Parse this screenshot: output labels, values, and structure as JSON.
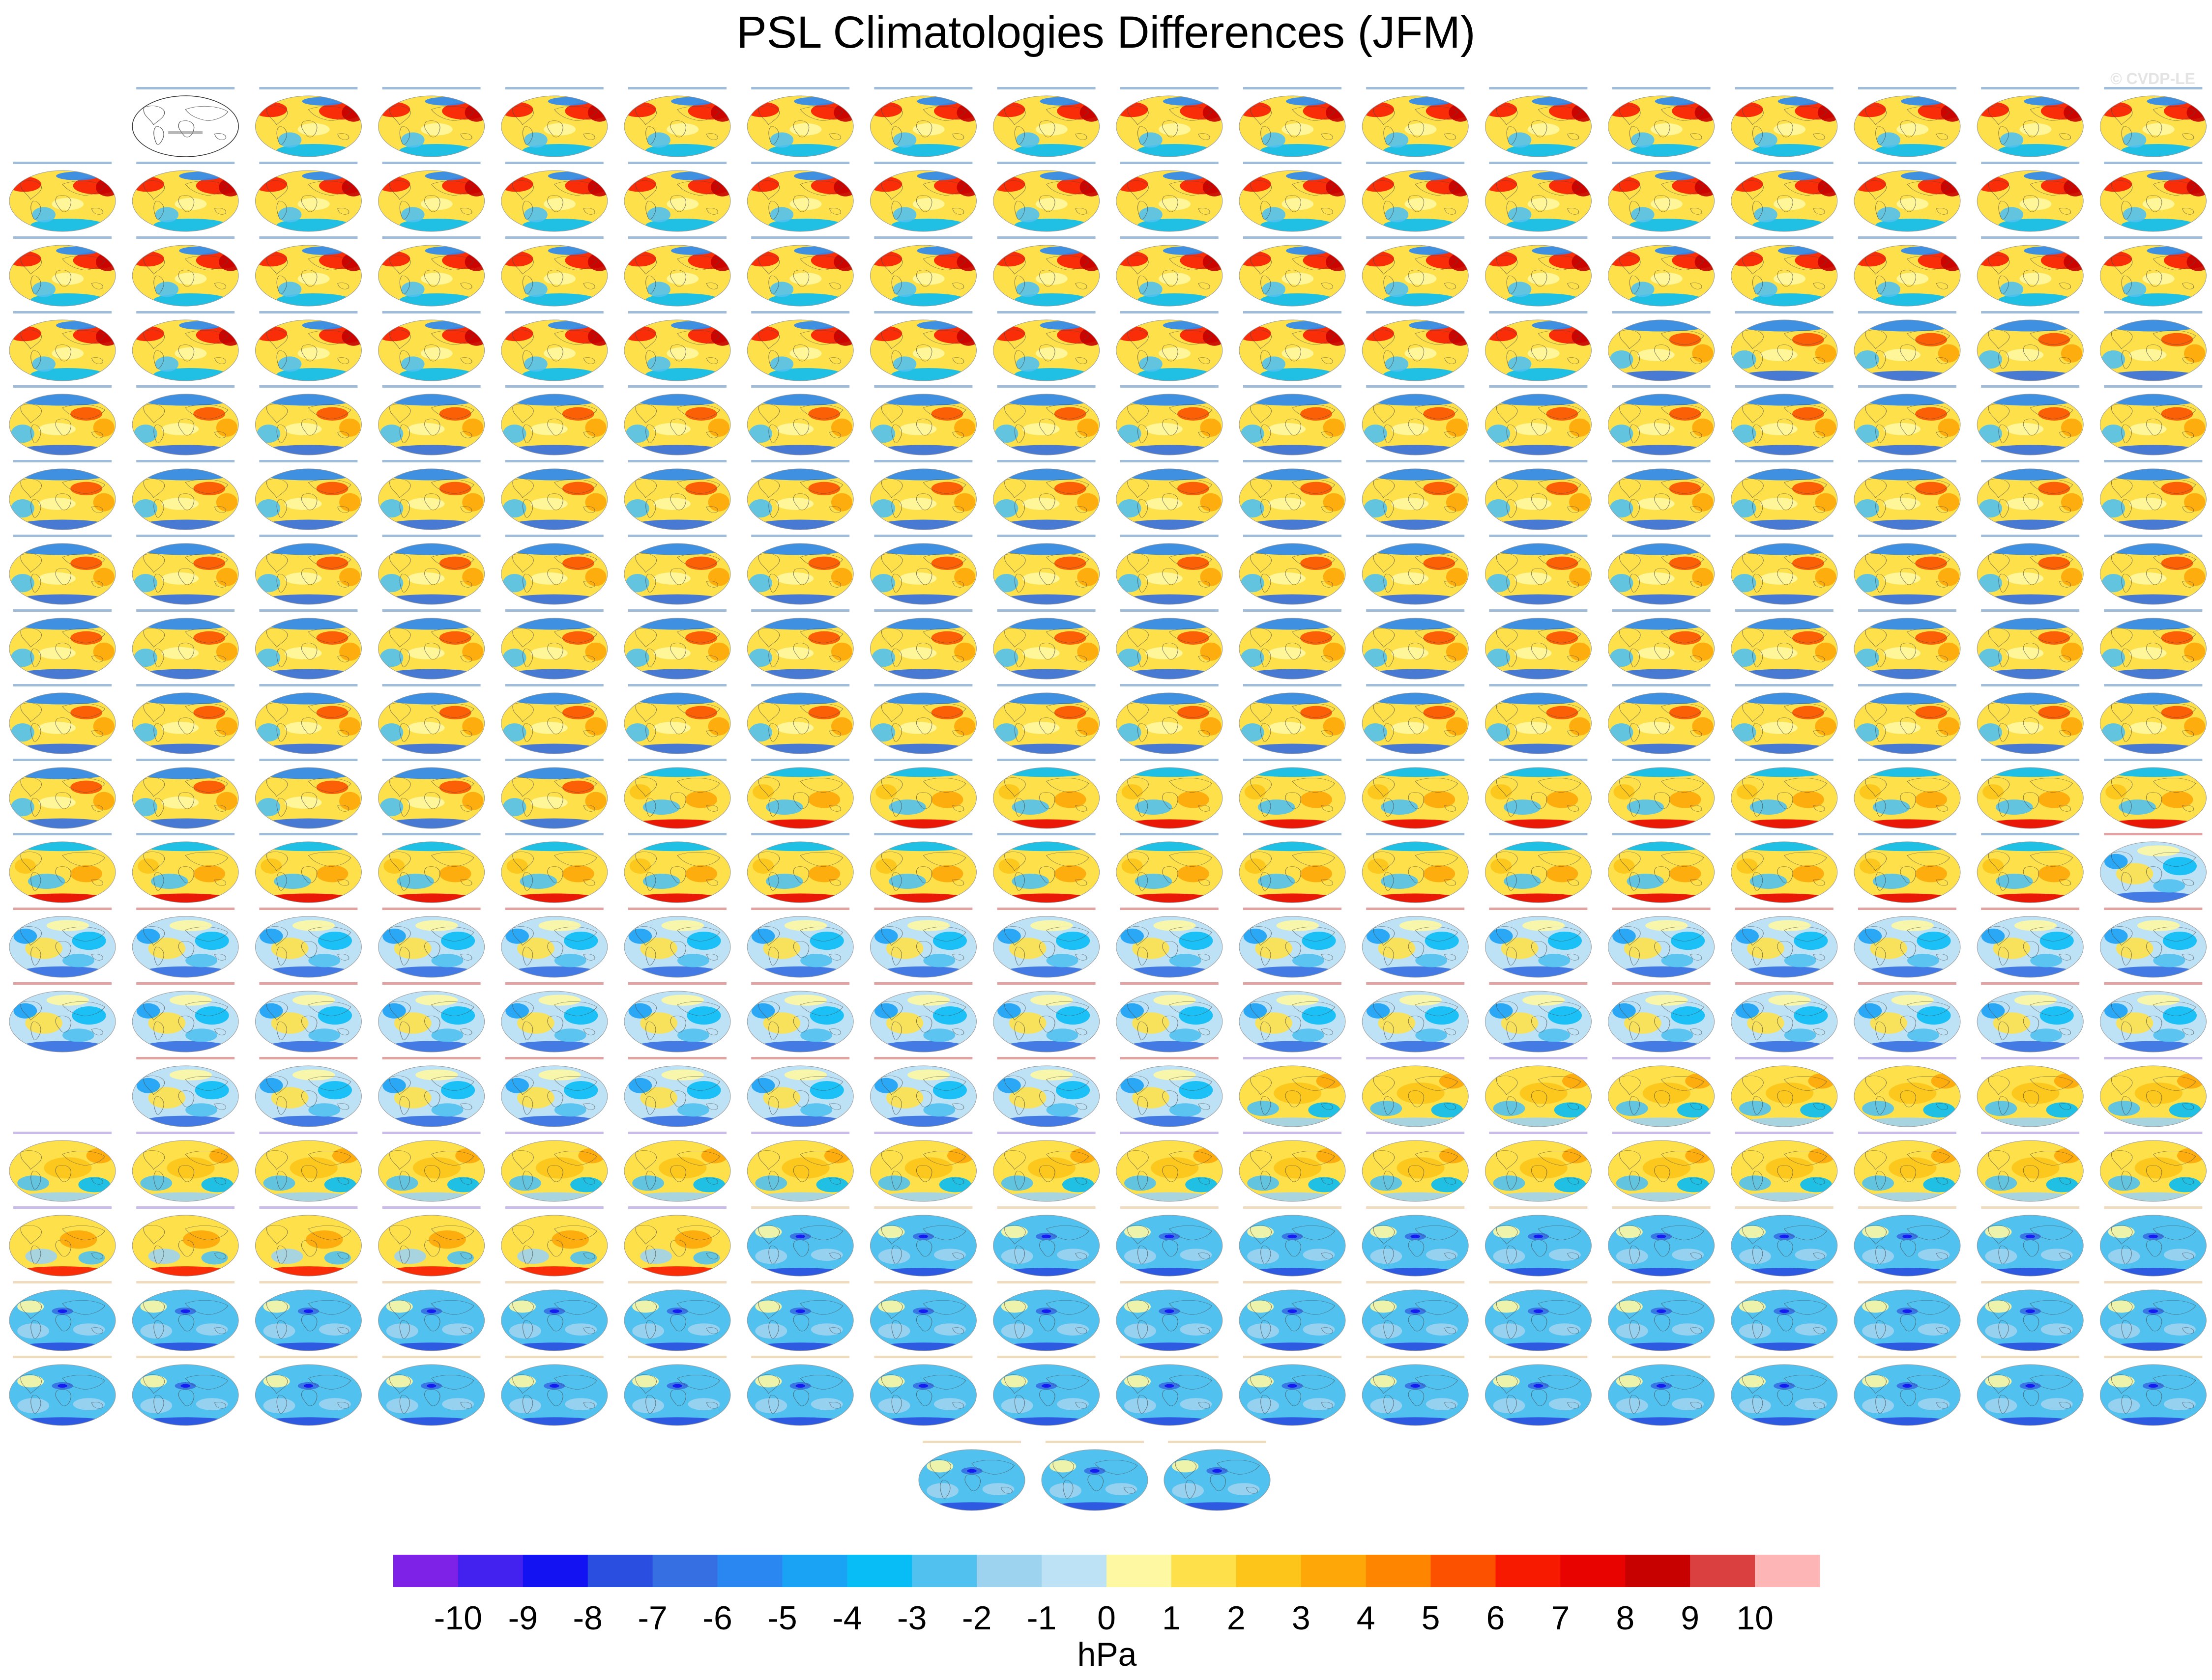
{
  "title": "PSL Climatologies Differences (JFM)",
  "watermark": "© CVDP-LE",
  "chart_data": {
    "type": "heatmap",
    "title": "PSL Climatologies Differences (JFM)",
    "panel_projection": "global map",
    "layout": {
      "columns": 18,
      "rows": 18,
      "blank_cells": [
        [
          0,
          0
        ],
        [
          13,
          0
        ]
      ],
      "reference_panel": [
        0,
        1
      ],
      "extra_row_panels": 3
    },
    "panel_styles": [
      [
        "blank",
        "reference",
        "warmNE",
        "warmNE",
        "warmNE",
        "warmNE",
        "warmNE",
        "warmNE",
        "warmNE",
        "warmNE",
        "warmNE",
        "warmNE",
        "warmNE",
        "warmNE",
        "warmNE",
        "warmNE",
        "warmNE",
        "warmNE"
      ],
      [
        "warmNE",
        "warmNE",
        "warmNE",
        "warmNE",
        "warmNE",
        "warmNE",
        "warmNE",
        "warmNE",
        "warmNE",
        "warmNE",
        "warmNE",
        "warmNE",
        "warmNE",
        "warmNE",
        "warmNE",
        "warmNE",
        "warmNE",
        "warmNE"
      ],
      [
        "warmNE",
        "warmNE",
        "warmNE",
        "warmNE",
        "warmNE",
        "warmNE",
        "warmNE",
        "warmNE",
        "warmNE",
        "warmNE",
        "warmNE",
        "warmNE",
        "warmNE",
        "warmNE",
        "warmNE",
        "warmNE",
        "warmNE",
        "warmNE"
      ],
      [
        "warmNE",
        "warmNE",
        "warmNE",
        "warmNE",
        "warmNE",
        "warmNE",
        "warmNE",
        "warmNE",
        "warmNE",
        "warmNE",
        "warmNE",
        "warmNE",
        "warmNE",
        "bluepole",
        "bluepole",
        "bluepole",
        "bluepole",
        "bluepole"
      ],
      [
        "bluepole",
        "bluepole",
        "bluepole",
        "bluepole",
        "bluepole",
        "bluepole",
        "bluepole",
        "bluepole",
        "bluepole",
        "bluepole",
        "bluepole",
        "bluepole",
        "bluepole",
        "bluepole",
        "bluepole",
        "bluepole",
        "bluepole",
        "bluepole"
      ],
      [
        "bluepole",
        "bluepole",
        "bluepole",
        "bluepole",
        "bluepole",
        "bluepole",
        "bluepole",
        "bluepole",
        "bluepole",
        "bluepole",
        "bluepole",
        "bluepole",
        "bluepole",
        "bluepole",
        "bluepole",
        "bluepole",
        "bluepole",
        "bluepole"
      ],
      [
        "bluepole",
        "bluepole",
        "bluepole",
        "bluepole",
        "bluepole",
        "bluepole",
        "bluepole",
        "bluepole",
        "bluepole",
        "bluepole",
        "bluepole",
        "bluepole",
        "bluepole",
        "bluepole",
        "bluepole",
        "bluepole",
        "bluepole",
        "bluepole"
      ],
      [
        "bluepole",
        "bluepole",
        "bluepole",
        "bluepole",
        "bluepole",
        "bluepole",
        "bluepole",
        "bluepole",
        "bluepole",
        "bluepole",
        "bluepole",
        "bluepole",
        "bluepole",
        "bluepole",
        "bluepole",
        "bluepole",
        "bluepole",
        "bluepole"
      ],
      [
        "bluepole",
        "bluepole",
        "bluepole",
        "bluepole",
        "bluepole",
        "bluepole",
        "bluepole",
        "bluepole",
        "bluepole",
        "bluepole",
        "bluepole",
        "bluepole",
        "bluepole",
        "bluepole",
        "bluepole",
        "bluepole",
        "bluepole",
        "bluepole"
      ],
      [
        "bluepole",
        "bluepole",
        "bluepole",
        "bluepole",
        "bluepole",
        "redsouth",
        "redsouth",
        "redsouth",
        "redsouth",
        "redsouth",
        "redsouth",
        "redsouth",
        "redsouth",
        "redsouth",
        "redsouth",
        "redsouth",
        "redsouth",
        "redsouth"
      ],
      [
        "redsouth",
        "redsouth",
        "redsouth",
        "redsouth",
        "redsouth",
        "redsouth",
        "redsouth",
        "redsouth",
        "redsouth",
        "redsouth",
        "redsouth",
        "redsouth",
        "redsouth",
        "redsouth",
        "redsouth",
        "redsouth",
        "redsouth",
        "coolmix"
      ],
      [
        "coolmix",
        "coolmix",
        "coolmix",
        "coolmix",
        "coolmix",
        "coolmix",
        "coolmix",
        "coolmix",
        "coolmix",
        "coolmix",
        "coolmix",
        "coolmix",
        "coolmix",
        "coolmix",
        "coolmix",
        "coolmix",
        "coolmix",
        "coolmix"
      ],
      [
        "coolmix",
        "coolmix",
        "coolmix",
        "coolmix",
        "coolmix",
        "coolmix",
        "coolmix",
        "coolmix",
        "coolmix",
        "coolmix",
        "coolmix",
        "coolmix",
        "coolmix",
        "coolmix",
        "coolmix",
        "coolmix",
        "coolmix",
        "coolmix"
      ],
      [
        "blank",
        "coolmix",
        "coolmix",
        "coolmix",
        "coolmix",
        "coolmix",
        "coolmix",
        "coolmix",
        "coolmix",
        "coolmix",
        "warmmix",
        "warmmix",
        "warmmix",
        "warmmix",
        "warmmix",
        "warmmix",
        "warmmix",
        "warmmix"
      ],
      [
        "warmmix",
        "warmmix",
        "warmmix",
        "warmmix",
        "warmmix",
        "warmmix",
        "warmmix",
        "warmmix",
        "warmmix",
        "warmmix",
        "warmmix",
        "warmmix",
        "warmmix",
        "warmmix",
        "warmmix",
        "warmmix",
        "warmmix",
        "warmmix"
      ],
      [
        "warmsouth",
        "warmsouth",
        "warmsouth",
        "warmsouth",
        "warmsouth",
        "warmsouth",
        "blue",
        "blue",
        "blue",
        "blue",
        "blue",
        "blue",
        "blue",
        "blue",
        "blue",
        "blue",
        "blue",
        "blue"
      ],
      [
        "blue",
        "blue",
        "blue",
        "blue",
        "blue",
        "blue",
        "blue",
        "blue",
        "blue",
        "blue",
        "blue",
        "blue",
        "blue",
        "blue",
        "blue",
        "blue",
        "blue",
        "blue"
      ],
      [
        "blue",
        "blue",
        "blue",
        "blue",
        "blue",
        "blue",
        "blue",
        "blue",
        "blue",
        "blue",
        "blue",
        "blue",
        "blue",
        "blue",
        "blue",
        "blue",
        "blue",
        "blue"
      ],
      [
        "blue",
        "blue",
        "blue"
      ]
    ],
    "colorbar": {
      "unit_label": "hPa",
      "tick_labels": [
        "-10",
        "-9",
        "-8",
        "-7",
        "-6",
        "-5",
        "-4",
        "-3",
        "-2",
        "-1",
        "0",
        "1",
        "2",
        "3",
        "4",
        "5",
        "6",
        "7",
        "8",
        "9",
        "10"
      ],
      "colors": [
        "#7e22e8",
        "#4322f0",
        "#1212f2",
        "#2a4fe0",
        "#356fe2",
        "#2a87f2",
        "#1aa2f5",
        "#08bcf6",
        "#51c1ef",
        "#9ed3ef",
        "#bde1f5",
        "#fef8a2",
        "#fee14a",
        "#fdc51a",
        "#fea708",
        "#fd8500",
        "#fc5200",
        "#f81a00",
        "#e80300",
        "#c70000",
        "#db4041",
        "#fdb5b5"
      ],
      "range": [
        -11,
        11
      ]
    }
  }
}
